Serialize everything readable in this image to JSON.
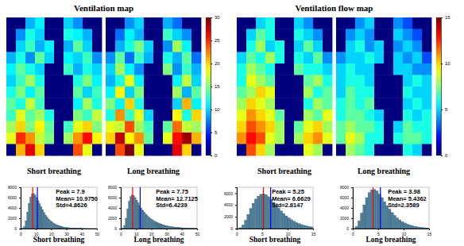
{
  "chart_data": [
    {
      "type": "heatmap",
      "title": "Ventilation map",
      "color_range": [
        0,
        30
      ],
      "color_ticks": [
        0,
        5,
        10,
        15,
        20,
        25,
        30
      ],
      "panels": [
        {
          "label": "Short breathing",
          "cells": [
            [
              0,
              0,
              9,
              11,
              0,
              0,
              10,
              8,
              0,
              0
            ],
            [
              0,
              8,
              12,
              10,
              0,
              0,
              12,
              11,
              9,
              0
            ],
            [
              0,
              10,
              13,
              9,
              11,
              0,
              9,
              14,
              10,
              0
            ],
            [
              9,
              12,
              8,
              14,
              10,
              0,
              11,
              10,
              13,
              8
            ],
            [
              11,
              14,
              12,
              10,
              0,
              0,
              13,
              9,
              12,
              10
            ],
            [
              10,
              13,
              16,
              12,
              0,
              0,
              0,
              12,
              15,
              11
            ],
            [
              12,
              15,
              11,
              14,
              0,
              0,
              0,
              14,
              10,
              13
            ],
            [
              14,
              12,
              17,
              13,
              0,
              0,
              0,
              11,
              16,
              12
            ],
            [
              13,
              18,
              14,
              16,
              12,
              0,
              0,
              15,
              13,
              17
            ],
            [
              16,
              20,
              15,
              19,
              14,
              0,
              13,
              18,
              20,
              15
            ],
            [
              18,
              25,
              22,
              17,
              15,
              0,
              16,
              22,
              26,
              19
            ],
            [
              0,
              21,
              27,
              20,
              0,
              0,
              0,
              24,
              18,
              0
            ]
          ]
        },
        {
          "label": "Long breathing",
          "cells": [
            [
              0,
              0,
              8,
              10,
              0,
              0,
              9,
              7,
              0,
              0
            ],
            [
              0,
              7,
              11,
              9,
              0,
              0,
              13,
              10,
              8,
              0
            ],
            [
              0,
              9,
              12,
              15,
              10,
              0,
              8,
              16,
              11,
              0
            ],
            [
              8,
              14,
              7,
              13,
              9,
              0,
              12,
              9,
              14,
              7
            ],
            [
              10,
              16,
              11,
              8,
              0,
              0,
              15,
              8,
              13,
              9
            ],
            [
              9,
              12,
              18,
              11,
              0,
              0,
              0,
              11,
              17,
              10
            ],
            [
              11,
              19,
              10,
              15,
              0,
              0,
              0,
              16,
              9,
              14
            ],
            [
              15,
              11,
              20,
              12,
              0,
              0,
              0,
              10,
              21,
              11
            ],
            [
              12,
              22,
              13,
              18,
              10,
              0,
              0,
              19,
              12,
              20
            ],
            [
              18,
              17,
              24,
              16,
              13,
              0,
              14,
              23,
              17,
              16
            ],
            [
              20,
              28,
              19,
              22,
              14,
              0,
              18,
              26,
              29,
              21
            ],
            [
              0,
              24,
              30,
              18,
              0,
              0,
              0,
              27,
              20,
              0
            ]
          ]
        }
      ]
    },
    {
      "type": "heatmap",
      "title": "Ventilation flow map",
      "color_range": [
        0,
        15
      ],
      "color_ticks": [
        0,
        5,
        10,
        15
      ],
      "panels": [
        {
          "label": "Short breathing",
          "cells": [
            [
              0,
              0,
              5,
              6,
              0,
              0,
              5,
              4,
              0,
              0
            ],
            [
              0,
              5,
              7,
              6,
              0,
              0,
              6,
              5,
              4,
              0
            ],
            [
              0,
              6,
              8,
              5,
              6,
              0,
              5,
              7,
              5,
              0
            ],
            [
              5,
              7,
              6,
              8,
              6,
              0,
              6,
              5,
              7,
              4
            ],
            [
              6,
              8,
              7,
              6,
              0,
              0,
              7,
              6,
              6,
              5
            ],
            [
              6,
              9,
              8,
              7,
              0,
              0,
              0,
              7,
              8,
              6
            ],
            [
              7,
              8,
              10,
              9,
              0,
              0,
              0,
              8,
              6,
              7
            ],
            [
              8,
              10,
              9,
              8,
              0,
              0,
              0,
              6,
              8,
              7
            ],
            [
              9,
              11,
              10,
              9,
              7,
              0,
              0,
              8,
              7,
              9
            ],
            [
              10,
              12,
              11,
              10,
              8,
              0,
              7,
              9,
              10,
              8
            ],
            [
              11,
              13,
              12,
              9,
              8,
              0,
              8,
              10,
              11,
              9
            ],
            [
              0,
              12,
              10,
              8,
              0,
              0,
              0,
              9,
              8,
              0
            ]
          ]
        },
        {
          "label": "Long breathing",
          "cells": [
            [
              0,
              0,
              4,
              5,
              0,
              0,
              4,
              3,
              0,
              0
            ],
            [
              0,
              4,
              5,
              4,
              0,
              0,
              5,
              4,
              3,
              0
            ],
            [
              0,
              5,
              6,
              4,
              5,
              0,
              4,
              5,
              4,
              0
            ],
            [
              4,
              5,
              5,
              6,
              5,
              0,
              5,
              4,
              5,
              3
            ],
            [
              5,
              6,
              5,
              5,
              0,
              0,
              5,
              5,
              4,
              4
            ],
            [
              5,
              6,
              6,
              5,
              0,
              0,
              0,
              5,
              6,
              5
            ],
            [
              5,
              7,
              6,
              6,
              0,
              0,
              0,
              6,
              5,
              5
            ],
            [
              6,
              7,
              6,
              7,
              0,
              0,
              0,
              5,
              6,
              5
            ],
            [
              6,
              7,
              7,
              6,
              5,
              0,
              0,
              6,
              5,
              6
            ],
            [
              7,
              8,
              7,
              7,
              6,
              0,
              5,
              7,
              6,
              6
            ],
            [
              7,
              9,
              8,
              6,
              6,
              0,
              6,
              7,
              7,
              6
            ],
            [
              0,
              8,
              7,
              6,
              0,
              0,
              0,
              6,
              5,
              0
            ]
          ]
        }
      ]
    },
    {
      "type": "histogram",
      "xlabel": "Short breathing",
      "color": "#4f7f9a",
      "annotations": [
        "Peak = 7.9",
        "Mean= 10.9750",
        "Std=4.8626"
      ],
      "peak": 7.9,
      "mean": 10.975,
      "xlim": [
        0,
        50
      ],
      "xticks": [
        0,
        10,
        20,
        30,
        40,
        50
      ],
      "ylim": [
        0,
        8000
      ],
      "yticks": [
        0,
        2000,
        4000,
        6000,
        8000
      ],
      "bins": [
        0,
        1,
        2,
        3,
        4,
        5,
        6,
        7,
        8,
        9,
        10,
        11,
        12,
        13,
        14,
        15,
        16,
        17,
        18,
        19,
        20,
        21,
        22,
        23,
        24,
        25,
        26,
        27,
        28,
        29,
        30,
        31,
        32,
        33,
        34,
        35,
        36,
        37,
        38,
        39,
        40,
        41,
        42,
        43,
        44,
        45,
        46,
        47,
        48,
        49,
        50
      ],
      "counts": [
        0,
        50,
        400,
        1500,
        3200,
        4900,
        6100,
        6700,
        6800,
        6500,
        6000,
        5400,
        4800,
        4200,
        3600,
        3100,
        2600,
        2200,
        1850,
        1550,
        1300,
        1080,
        900,
        750,
        620,
        510,
        420,
        350,
        290,
        240,
        200,
        165,
        135,
        110,
        90,
        75,
        60,
        50,
        40,
        33,
        27,
        22,
        18,
        15,
        12,
        10,
        8,
        6,
        5,
        4
      ]
    },
    {
      "type": "histogram",
      "xlabel": "Long breathing",
      "color": "#4f7f9a",
      "annotations": [
        "Peak = 7.75",
        "Mean= 12.7125",
        "Std=6.4239"
      ],
      "peak": 7.75,
      "mean": 12.7125,
      "xlim": [
        0,
        50
      ],
      "xticks": [
        0,
        10,
        20,
        30,
        40,
        50
      ],
      "ylim": [
        0,
        8000
      ],
      "yticks": [
        0,
        2000,
        4000,
        6000,
        8000
      ],
      "bins": [
        0,
        1,
        2,
        3,
        4,
        5,
        6,
        7,
        8,
        9,
        10,
        11,
        12,
        13,
        14,
        15,
        16,
        17,
        18,
        19,
        20,
        21,
        22,
        23,
        24,
        25,
        26,
        27,
        28,
        29,
        30,
        31,
        32,
        33,
        34,
        35,
        36,
        37,
        38,
        39,
        40,
        41,
        42,
        43,
        44,
        45,
        46,
        47,
        48,
        49,
        50
      ],
      "counts": [
        0,
        80,
        600,
        2000,
        3800,
        5300,
        6200,
        6500,
        6400,
        6000,
        5500,
        4950,
        4450,
        3980,
        3550,
        3150,
        2800,
        2500,
        2220,
        1970,
        1750,
        1560,
        1390,
        1240,
        1100,
        980,
        870,
        770,
        680,
        600,
        530,
        470,
        410,
        360,
        320,
        280,
        245,
        215,
        190,
        165,
        145,
        125,
        110,
        95,
        80,
        70,
        60,
        50,
        42,
        35
      ]
    },
    {
      "type": "histogram",
      "xlabel": "Short breathing",
      "color": "#4f7f9a",
      "annotations": [
        "Peak = 5.25",
        "Mean= 6.6629",
        "Std=2.8147"
      ],
      "peak": 5.25,
      "mean": 6.6629,
      "xlim": [
        0,
        15
      ],
      "xticks": [
        0,
        5,
        10,
        15
      ],
      "ylim": [
        0,
        7000
      ],
      "yticks": [
        0,
        2000,
        4000,
        6000
      ],
      "bins": [
        0,
        0.5,
        1,
        1.5,
        2,
        2.5,
        3,
        3.5,
        4,
        4.5,
        5,
        5.5,
        6,
        6.5,
        7,
        7.5,
        8,
        8.5,
        9,
        9.5,
        10,
        10.5,
        11,
        11.5,
        12,
        12.5,
        13,
        13.5,
        14,
        14.5,
        15
      ],
      "counts": [
        20,
        150,
        600,
        1400,
        2400,
        3400,
        4300,
        5000,
        5500,
        5800,
        5900,
        5750,
        5400,
        4950,
        4450,
        3950,
        3450,
        2980,
        2550,
        2150,
        1800,
        1500,
        1240,
        1020,
        830,
        680,
        550,
        440,
        350,
        280
      ]
    },
    {
      "type": "histogram",
      "xlabel": "Long breathing",
      "color": "#4f7f9a",
      "annotations": [
        "Peak = 3.98",
        "Mean= 5.4362",
        "Std=2.3589"
      ],
      "peak": 3.98,
      "mean": 5.4362,
      "xlim": [
        0,
        15
      ],
      "xticks": [
        0,
        5,
        10,
        15
      ],
      "ylim": [
        0,
        8000
      ],
      "yticks": [
        0,
        2000,
        4000,
        6000,
        8000
      ],
      "bins": [
        0,
        0.5,
        1,
        1.5,
        2,
        2.5,
        3,
        3.5,
        4,
        4.5,
        5,
        5.5,
        6,
        6.5,
        7,
        7.5,
        8,
        8.5,
        9,
        9.5,
        10,
        10.5,
        11,
        11.5,
        12,
        12.5,
        13,
        13.5,
        14,
        14.5,
        15
      ],
      "counts": [
        40,
        400,
        1500,
        3000,
        4600,
        6000,
        7000,
        7500,
        7600,
        7300,
        6700,
        6000,
        5200,
        4450,
        3750,
        3100,
        2550,
        2080,
        1680,
        1350,
        1080,
        860,
        680,
        540,
        420,
        330,
        260,
        200,
        155,
        120
      ]
    }
  ]
}
